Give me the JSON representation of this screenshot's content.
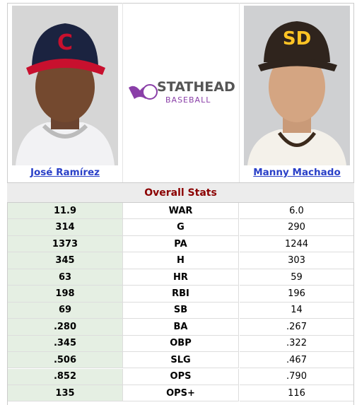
{
  "players": [
    {
      "name": "José Ramírez"
    },
    {
      "name": "Manny Machado"
    }
  ],
  "logo": {
    "brand": "STATHEAD",
    "sub": "BASEBALL"
  },
  "section_title": "Overall Stats",
  "rows": [
    [
      "11.9",
      "WAR",
      "6.0"
    ],
    [
      "314",
      "G",
      "290"
    ],
    [
      "1373",
      "PA",
      "1244"
    ],
    [
      "345",
      "H",
      "303"
    ],
    [
      "63",
      "HR",
      "59"
    ],
    [
      "198",
      "RBI",
      "196"
    ],
    [
      "69",
      "SB",
      "14"
    ],
    [
      ".280",
      "BA",
      ".267"
    ],
    [
      ".345",
      "OBP",
      ".322"
    ],
    [
      ".506",
      "SLG",
      ".467"
    ],
    [
      ".852",
      "OPS",
      ".790"
    ],
    [
      "135",
      "OPS+",
      "116"
    ]
  ]
}
